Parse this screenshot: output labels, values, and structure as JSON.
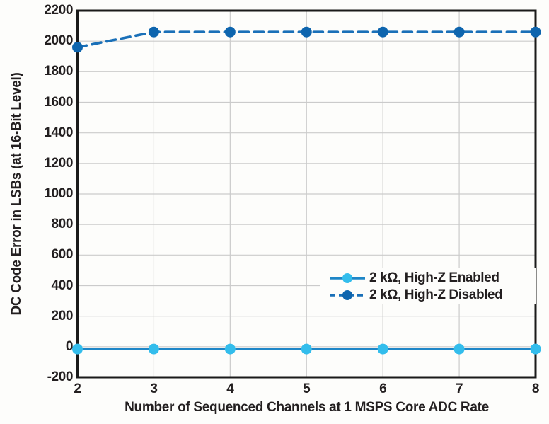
{
  "figure": {
    "background": "#fdfdfb",
    "axis_color": "#1a1a1a",
    "grid_color": "#cbcbcb",
    "text_color": "#231f20"
  },
  "chart_data": {
    "type": "line",
    "title": "",
    "xlabel": "Number of Sequenced Channels at 1 MSPS Core ADC Rate",
    "ylabel": "DC Code Error in LSBs (at 16-Bit Level)",
    "x": [
      2,
      3,
      4,
      5,
      6,
      7,
      8
    ],
    "xlim": [
      2,
      8
    ],
    "ylim": [
      -200,
      2200
    ],
    "ytick_step": 200,
    "grid": "both",
    "legend_position": "inside lower-right",
    "series": [
      {
        "name": "2 kΩ, High-Z Enabled",
        "style": "solid",
        "line_color": "#1e86c7",
        "marker_color": "#33bdec",
        "values": [
          -15,
          -15,
          -15,
          -15,
          -15,
          -15,
          -15
        ]
      },
      {
        "name": "2 kΩ, High-Z Disabled",
        "style": "dashed",
        "line_color": "#1a70b8",
        "marker_color": "#0e65ae",
        "values": [
          1960,
          2060,
          2060,
          2060,
          2060,
          2060,
          2060
        ]
      }
    ]
  }
}
